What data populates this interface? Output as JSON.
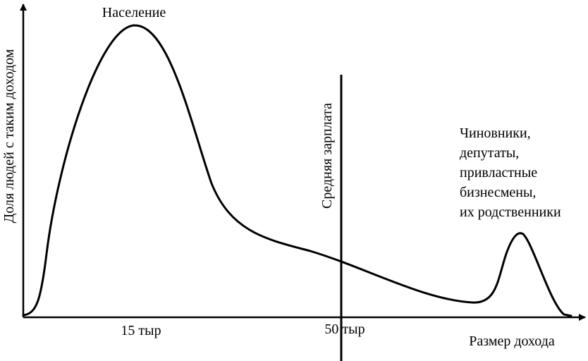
{
  "colors": {
    "ink": "#000000",
    "background": "#ffffff"
  },
  "labels": {
    "y_axis": "Доля людей с таким доходом",
    "x_axis": "Размер дохода",
    "peak_main": "Население",
    "median_line": "Средняя зарплата",
    "tick_15": "15 тыр",
    "tick_50": "50 тыр",
    "elite": [
      "Чиновники,",
      "депутаты,",
      "привластные",
      "бизнесмены,",
      "их родственники"
    ]
  }
}
